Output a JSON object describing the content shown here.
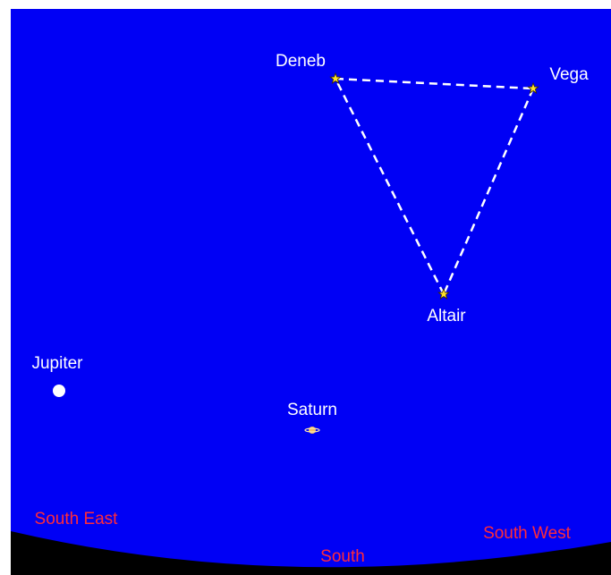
{
  "stars": [
    {
      "label": "Deneb"
    },
    {
      "label": "Vega"
    },
    {
      "label": "Altair"
    }
  ],
  "planets": [
    {
      "label": "Jupiter"
    },
    {
      "label": "Saturn"
    }
  ],
  "directions": [
    {
      "label": "South East"
    },
    {
      "label": "South"
    },
    {
      "label": "South West"
    }
  ]
}
